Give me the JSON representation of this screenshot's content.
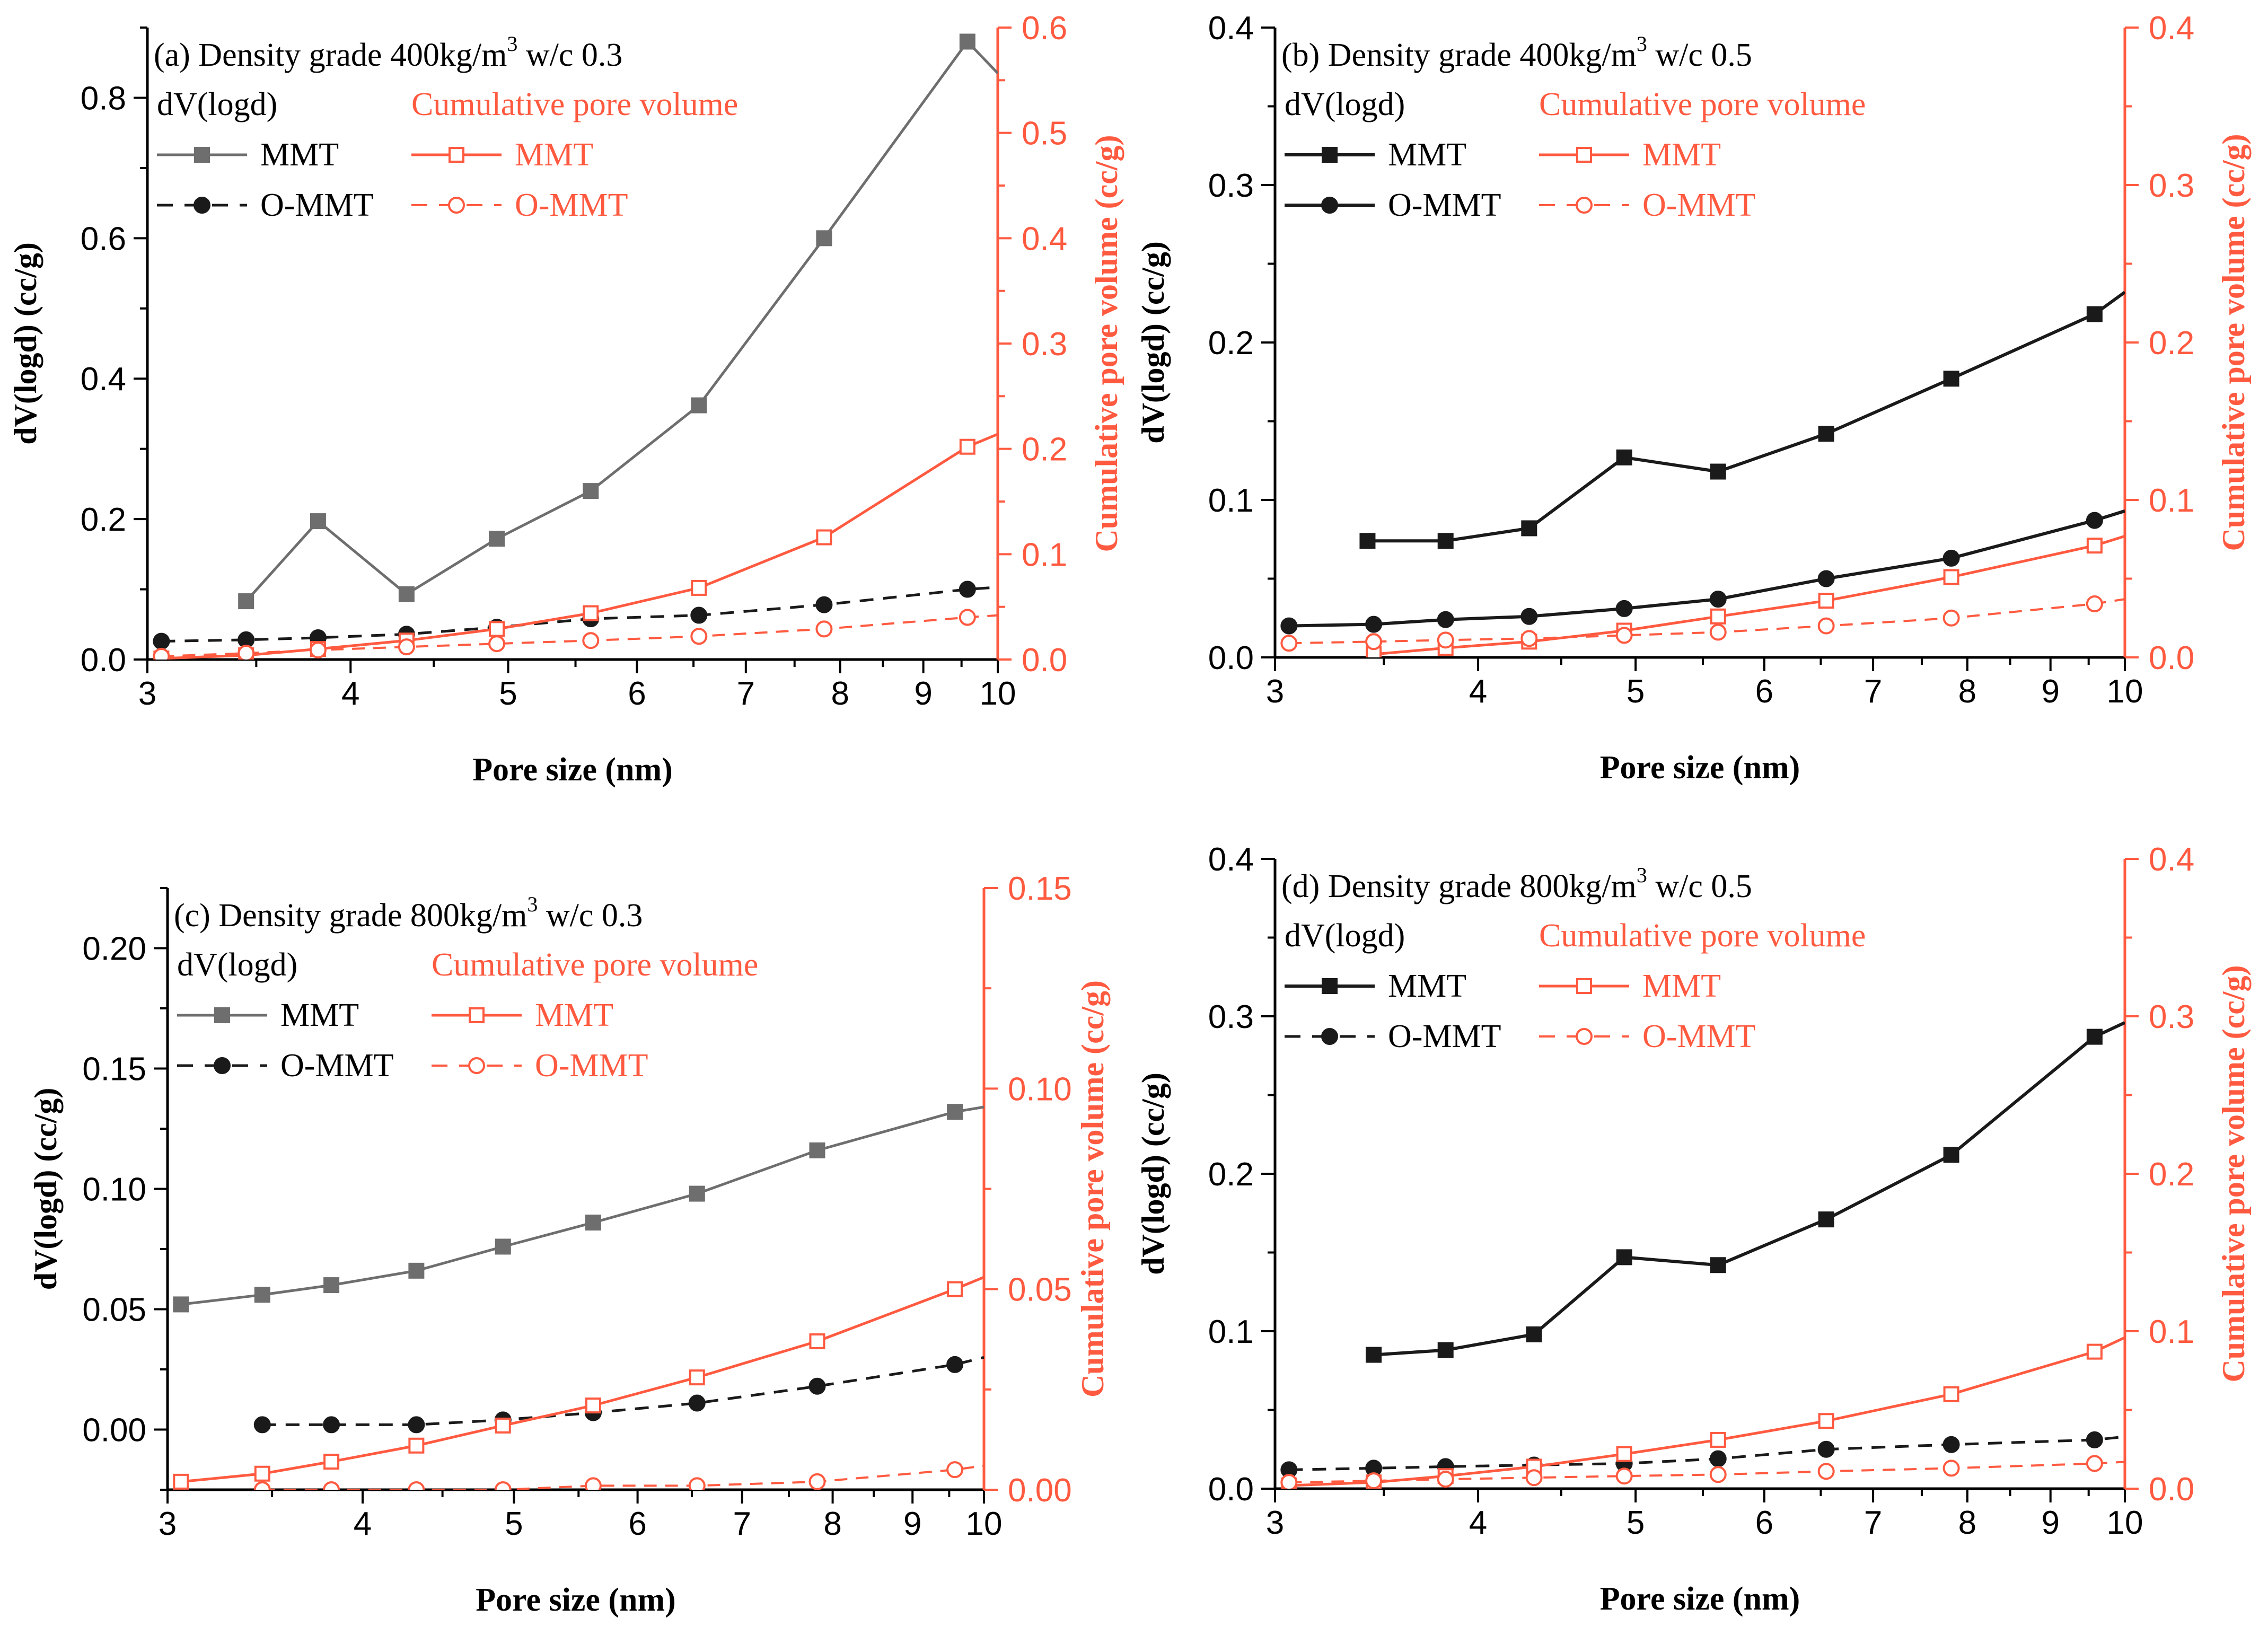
{
  "colors": {
    "axis": "#000000",
    "cumulative": "#FF5A40",
    "mmt_dv_grey": "#6E6E6E",
    "mmt_dv_black": "#1A1A1A",
    "ommt_dv": "#1A1A1A"
  },
  "chart_data": [
    {
      "type": "line",
      "panel": "a",
      "title_prefix": "(a) Density grade 400kg/m",
      "title_sup": "3",
      "title_suffix": " w/c 0.3",
      "xlabel": "Pore size (nm)",
      "ylabel": "dV(logd) (cc/g)",
      "y2label": "Cumulative pore volume (cc/g)",
      "xscale": "log",
      "xlim": [
        3,
        10
      ],
      "xticks": [
        "3",
        "4",
        "5",
        "6",
        "7",
        "8",
        "9",
        "10"
      ],
      "ylim": [
        0,
        0.9
      ],
      "yticks": [
        "0.0",
        "0.2",
        "0.4",
        "0.6",
        "0.8"
      ],
      "y2lim": [
        0,
        0.6
      ],
      "y2ticks": [
        "0.0",
        "0.1",
        "0.2",
        "0.3",
        "0.4",
        "0.5",
        "0.6"
      ],
      "legend": {
        "dv_header": "dV(logd)",
        "cum_header": "Cumulative pore volume",
        "mmt": "MMT",
        "ommt": "O-MMT",
        "placement": "top-left"
      },
      "series": [
        {
          "name": "MMT",
          "group": "dV(logd)",
          "axis": "left",
          "style": "mmt_grey",
          "x": [
            3.45,
            3.82,
            4.33,
            4.92,
            5.62,
            6.55,
            7.82,
            9.58,
            10.0
          ],
          "y": [
            0.083,
            0.197,
            0.093,
            0.172,
            0.24,
            0.362,
            0.6,
            0.88,
            0.835
          ],
          "markers": [
            true,
            true,
            true,
            true,
            true,
            true,
            true,
            true,
            false
          ]
        },
        {
          "name": "O-MMT",
          "group": "dV(logd)",
          "axis": "left",
          "style": "ommt_dv",
          "x": [
            3.06,
            3.45,
            3.82,
            4.33,
            4.92,
            5.62,
            6.55,
            7.82,
            9.58,
            10.0
          ],
          "y": [
            0.026,
            0.028,
            0.031,
            0.036,
            0.046,
            0.058,
            0.063,
            0.078,
            0.1,
            0.103
          ],
          "markers": [
            true,
            true,
            true,
            true,
            true,
            true,
            true,
            true,
            true,
            false
          ]
        },
        {
          "name": "MMT",
          "group": "Cumulative pore volume",
          "axis": "right",
          "style": "mmt_cum",
          "x": [
            3.06,
            3.45,
            3.82,
            4.33,
            4.92,
            5.62,
            6.55,
            7.82,
            9.58,
            10.0
          ],
          "y": [
            0.001,
            0.004,
            0.01,
            0.018,
            0.029,
            0.044,
            0.068,
            0.116,
            0.202,
            0.214
          ],
          "markers": [
            true,
            true,
            true,
            true,
            true,
            true,
            true,
            true,
            true,
            false
          ]
        },
        {
          "name": "O-MMT",
          "group": "Cumulative pore volume",
          "axis": "right",
          "style": "ommt_cum",
          "x": [
            3.06,
            3.45,
            3.82,
            4.33,
            4.92,
            5.62,
            6.55,
            7.82,
            9.58,
            10.0
          ],
          "y": [
            0.003,
            0.006,
            0.009,
            0.012,
            0.015,
            0.018,
            0.022,
            0.029,
            0.04,
            0.042
          ],
          "markers": [
            true,
            true,
            true,
            true,
            true,
            true,
            true,
            true,
            true,
            false
          ]
        }
      ]
    },
    {
      "type": "line",
      "panel": "b",
      "title_prefix": "(b) Density grade 400kg/m",
      "title_sup": "3",
      "title_suffix": " w/c 0.5",
      "xlabel": "Pore size (nm)",
      "ylabel": "dV(logd) (cc/g)",
      "y2label": "Cumulative pore volume (cc/g)",
      "xscale": "log",
      "xlim": [
        3,
        10
      ],
      "xticks": [
        "3",
        "4",
        "5",
        "6",
        "7",
        "8",
        "9",
        "10"
      ],
      "ylim": [
        0,
        0.4
      ],
      "yticks": [
        "0.0",
        "0.1",
        "0.2",
        "0.3",
        "0.4"
      ],
      "y2lim": [
        0,
        0.4
      ],
      "y2ticks": [
        "0.0",
        "0.1",
        "0.2",
        "0.3",
        "0.4"
      ],
      "legend": {
        "dv_header": "dV(logd)",
        "cum_header": "Cumulative pore volume",
        "mmt": "MMT",
        "ommt": "O-MMT",
        "placement": "top-left"
      },
      "series": [
        {
          "name": "MMT",
          "group": "dV(logd)",
          "axis": "left",
          "style": "mmt_black",
          "x": [
            3.42,
            3.82,
            4.3,
            4.92,
            5.62,
            6.55,
            7.82,
            9.58,
            10.0
          ],
          "y": [
            0.074,
            0.074,
            0.082,
            0.127,
            0.118,
            0.142,
            0.177,
            0.218,
            0.232
          ],
          "markers": [
            true,
            true,
            true,
            true,
            true,
            true,
            true,
            true,
            false
          ]
        },
        {
          "name": "O-MMT",
          "group": "dV(logd)",
          "axis": "left",
          "style": "mmt_black_circle",
          "x": [
            3.06,
            3.45,
            3.82,
            4.3,
            4.92,
            5.62,
            6.55,
            7.82,
            9.58,
            10.0
          ],
          "y": [
            0.02,
            0.021,
            0.024,
            0.026,
            0.031,
            0.037,
            0.05,
            0.063,
            0.087,
            0.093
          ],
          "markers": [
            true,
            true,
            true,
            true,
            true,
            true,
            true,
            true,
            true,
            false
          ]
        },
        {
          "name": "MMT",
          "group": "Cumulative pore volume",
          "axis": "right",
          "style": "mmt_cum",
          "x": [
            3.45,
            3.82,
            4.3,
            4.92,
            5.62,
            6.55,
            7.82,
            9.58,
            10.0
          ],
          "y": [
            0.002,
            0.006,
            0.01,
            0.017,
            0.026,
            0.036,
            0.051,
            0.071,
            0.077
          ],
          "markers": [
            true,
            true,
            true,
            true,
            true,
            true,
            true,
            true,
            false
          ]
        },
        {
          "name": "O-MMT",
          "group": "Cumulative pore volume",
          "axis": "right",
          "style": "ommt_cum",
          "x": [
            3.06,
            3.45,
            3.82,
            4.3,
            4.92,
            5.62,
            6.55,
            7.82,
            9.58,
            10.0
          ],
          "y": [
            0.009,
            0.01,
            0.011,
            0.012,
            0.014,
            0.016,
            0.02,
            0.025,
            0.034,
            0.037
          ],
          "markers": [
            true,
            true,
            true,
            true,
            true,
            true,
            true,
            true,
            true,
            false
          ]
        }
      ]
    },
    {
      "type": "line",
      "panel": "c",
      "title_prefix": "(c) Density grade 800kg/m",
      "title_sup": "3",
      "title_suffix": " w/c 0.3",
      "xlabel": "Pore size (nm)",
      "ylabel": "dV(logd) (cc/g)",
      "y2label": "Cumulative pore volume (cc/g)",
      "xscale": "log",
      "xlim": [
        3,
        10
      ],
      "xticks": [
        "3",
        "4",
        "5",
        "6",
        "7",
        "8",
        "9",
        "10"
      ],
      "ylim": [
        -0.025,
        0.225
      ],
      "yticks": [
        "0.00",
        "0.05",
        "0.10",
        "0.15",
        "0.20"
      ],
      "ytick_values": [
        0,
        0.05,
        0.1,
        0.15,
        0.2
      ],
      "y2lim": [
        0,
        0.15
      ],
      "y2ticks": [
        "0.00",
        "0.05",
        "0.10",
        "0.15"
      ],
      "legend": {
        "dv_header": "dV(logd)",
        "cum_header": "Cumulative pore volume",
        "mmt": "MMT",
        "ommt": "O-MMT",
        "placement": "top-left"
      },
      "series": [
        {
          "name": "MMT",
          "group": "dV(logd)",
          "axis": "left",
          "style": "mmt_grey",
          "x": [
            3.06,
            3.45,
            3.82,
            4.33,
            4.92,
            5.62,
            6.55,
            7.82,
            9.58,
            10.0
          ],
          "y": [
            0.052,
            0.056,
            0.06,
            0.066,
            0.076,
            0.086,
            0.098,
            0.116,
            0.132,
            0.134
          ],
          "markers": [
            true,
            true,
            true,
            true,
            true,
            true,
            true,
            true,
            true,
            false
          ]
        },
        {
          "name": "O-MMT",
          "group": "dV(logd)",
          "axis": "left",
          "style": "ommt_dv",
          "x": [
            3.45,
            3.82,
            4.33,
            4.92,
            5.62,
            6.55,
            7.82,
            9.58,
            10.0
          ],
          "y": [
            0.002,
            0.002,
            0.002,
            0.004,
            0.007,
            0.011,
            0.018,
            0.027,
            0.03
          ],
          "markers": [
            true,
            true,
            true,
            true,
            true,
            true,
            true,
            true,
            false
          ]
        },
        {
          "name": "MMT",
          "group": "Cumulative pore volume",
          "axis": "right",
          "style": "mmt_cum",
          "x": [
            3.06,
            3.45,
            3.82,
            4.33,
            4.92,
            5.62,
            6.55,
            7.82,
            9.58,
            10.0
          ],
          "y": [
            0.002,
            0.004,
            0.007,
            0.011,
            0.016,
            0.021,
            0.028,
            0.037,
            0.05,
            0.053
          ],
          "markers": [
            true,
            true,
            true,
            true,
            true,
            true,
            true,
            true,
            true,
            false
          ]
        },
        {
          "name": "O-MMT",
          "group": "Cumulative pore volume",
          "axis": "right",
          "style": "ommt_cum",
          "x": [
            3.45,
            3.82,
            4.33,
            4.92,
            5.62,
            6.55,
            7.82,
            9.58,
            10.0
          ],
          "y": [
            0.0,
            0.0,
            0.0,
            0.0,
            0.001,
            0.001,
            0.002,
            0.005,
            0.006
          ],
          "markers": [
            true,
            true,
            true,
            true,
            true,
            true,
            true,
            true,
            false
          ]
        }
      ]
    },
    {
      "type": "line",
      "panel": "d",
      "title_prefix": "(d) Density grade 800kg/m",
      "title_sup": "3",
      "title_suffix": " w/c 0.5",
      "xlabel": "Pore size (nm)",
      "ylabel": "dV(logd) (cc/g)",
      "y2label": "Cumulative pore volume (cc/g)",
      "xscale": "log",
      "xlim": [
        3,
        10
      ],
      "xticks": [
        "3",
        "4",
        "5",
        "6",
        "7",
        "8",
        "9",
        "10"
      ],
      "ylim": [
        0,
        0.4
      ],
      "yticks": [
        "0.0",
        "0.1",
        "0.2",
        "0.3",
        "0.4"
      ],
      "y2lim": [
        0,
        0.4
      ],
      "y2ticks": [
        "0.0",
        "0.1",
        "0.2",
        "0.3",
        "0.4"
      ],
      "legend": {
        "dv_header": "dV(logd)",
        "cum_header": "Cumulative pore volume",
        "mmt": "MMT",
        "ommt": "O-MMT",
        "placement": "top-left"
      },
      "series": [
        {
          "name": "MMT",
          "group": "dV(logd)",
          "axis": "left",
          "style": "mmt_black",
          "x": [
            3.45,
            3.82,
            4.33,
            4.92,
            5.62,
            6.55,
            7.82,
            9.58,
            10.0
          ],
          "y": [
            0.085,
            0.088,
            0.098,
            0.147,
            0.142,
            0.171,
            0.212,
            0.287,
            0.296
          ],
          "markers": [
            true,
            true,
            true,
            true,
            true,
            true,
            true,
            true,
            false
          ]
        },
        {
          "name": "O-MMT",
          "group": "dV(logd)",
          "axis": "left",
          "style": "ommt_dv",
          "x": [
            3.06,
            3.45,
            3.82,
            4.33,
            4.92,
            5.62,
            6.55,
            7.82,
            9.58,
            10.0
          ],
          "y": [
            0.012,
            0.013,
            0.014,
            0.015,
            0.016,
            0.019,
            0.025,
            0.028,
            0.031,
            0.033
          ],
          "markers": [
            true,
            true,
            true,
            true,
            true,
            true,
            true,
            true,
            true,
            false
          ]
        },
        {
          "name": "MMT",
          "group": "Cumulative pore volume",
          "axis": "right",
          "style": "mmt_cum",
          "x": [
            3.06,
            3.45,
            3.82,
            4.33,
            4.92,
            5.62,
            6.55,
            7.82,
            9.58,
            10.0
          ],
          "y": [
            0.002,
            0.004,
            0.008,
            0.014,
            0.022,
            0.031,
            0.043,
            0.06,
            0.087,
            0.096
          ],
          "markers": [
            true,
            true,
            true,
            true,
            true,
            true,
            true,
            true,
            true,
            false
          ]
        },
        {
          "name": "O-MMT",
          "group": "Cumulative pore volume",
          "axis": "right",
          "style": "ommt_cum",
          "x": [
            3.06,
            3.45,
            3.82,
            4.33,
            4.92,
            5.62,
            6.55,
            7.82,
            9.58,
            10.0
          ],
          "y": [
            0.004,
            0.005,
            0.006,
            0.007,
            0.008,
            0.009,
            0.011,
            0.013,
            0.016,
            0.017
          ],
          "markers": [
            true,
            true,
            true,
            true,
            true,
            true,
            true,
            true,
            true,
            false
          ]
        }
      ]
    }
  ]
}
